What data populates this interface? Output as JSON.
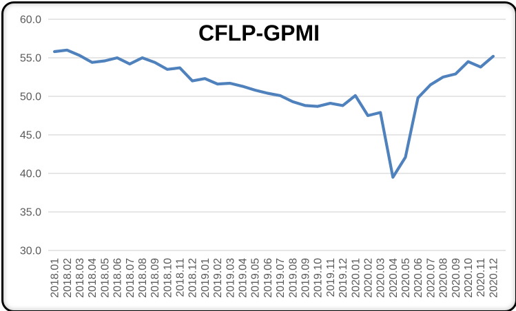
{
  "chart_data": {
    "type": "line",
    "title": "CFLP-GPMI",
    "xlabel": "",
    "ylabel": "",
    "ylim": [
      30,
      60
    ],
    "ytick_step": 5,
    "ytick_labels": [
      "30.0",
      "35.0",
      "40.0",
      "45.0",
      "50.0",
      "55.0",
      "60.0"
    ],
    "grid": "horizontal",
    "legend_position": "none",
    "categories": [
      "2018.01",
      "2018.02",
      "2018.03",
      "2018.04",
      "2018.05",
      "2018.06",
      "2018.07",
      "2018.08",
      "2018.09",
      "2018.10",
      "2018.11",
      "2018.12",
      "2019.01",
      "2019.02",
      "2019.03",
      "2019.04",
      "2019.05",
      "2019.06",
      "2019.07",
      "2019.08",
      "2019.09",
      "2019.10",
      "2019.11",
      "2019.12",
      "2020.01",
      "2020.02",
      "2020.03",
      "2020.04",
      "2020.05",
      "2020.06",
      "2020.07",
      "2020.08",
      "2020.09",
      "2020.10",
      "2020.11",
      "2020.12"
    ],
    "series": [
      {
        "name": "CFLP-GPMI",
        "values": [
          55.8,
          56.0,
          55.3,
          54.4,
          54.6,
          55.0,
          54.2,
          55.0,
          54.4,
          53.5,
          53.7,
          52.0,
          52.3,
          51.6,
          51.7,
          51.3,
          50.8,
          50.4,
          50.1,
          49.3,
          48.8,
          48.7,
          49.1,
          48.8,
          50.1,
          47.5,
          47.9,
          39.5,
          42.1,
          49.8,
          51.5,
          52.5,
          52.9,
          54.5,
          53.8,
          55.2
        ]
      }
    ],
    "colors": {
      "line": "#4F81BD",
      "gridline": "#D6D6D6",
      "axis_label": "#595959",
      "title": "#000000",
      "background": "#FFFFFF",
      "frame_border": "#000000"
    }
  }
}
